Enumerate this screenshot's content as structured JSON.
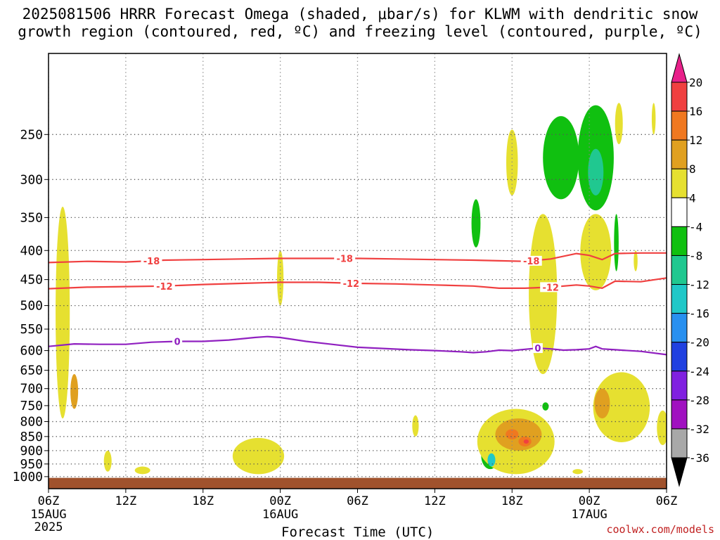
{
  "title": {
    "line1": "2025081506 HRRR Forecast Omega (shaded, μbar/s) for KLWM with dendritic snow",
    "line2": "growth region (contoured, red, ºC) and freezing level (contoured, purple, ºC)"
  },
  "credit": "coolwx.com/models",
  "chart_data": {
    "type": "heatmap",
    "title": "2025081506 HRRR Forecast Omega (shaded, μbar/s) for KLWM with dendritic snow growth region (contoured, red, ºC) and freezing level (contoured, purple, ºC)",
    "xlabel": "Forecast Time (UTC)",
    "ylabel": "",
    "x_ticks": [
      {
        "hour": 0,
        "label": "06Z",
        "sub": [
          "15AUG",
          "2025"
        ]
      },
      {
        "hour": 6,
        "label": "12Z",
        "sub": []
      },
      {
        "hour": 12,
        "label": "18Z",
        "sub": []
      },
      {
        "hour": 18,
        "label": "00Z",
        "sub": [
          "16AUG"
        ]
      },
      {
        "hour": 24,
        "label": "06Z",
        "sub": []
      },
      {
        "hour": 30,
        "label": "12Z",
        "sub": []
      },
      {
        "hour": 36,
        "label": "18Z",
        "sub": []
      },
      {
        "hour": 42,
        "label": "00Z",
        "sub": [
          "17AUG"
        ]
      },
      {
        "hour": 48,
        "label": "06Z",
        "sub": []
      }
    ],
    "xlim_hours": [
      0,
      48
    ],
    "y_axis": {
      "unit": "hPa",
      "scale": "pressure (log), inverted",
      "ylim": [
        1050,
        180
      ],
      "ticks": [
        250,
        300,
        350,
        400,
        450,
        500,
        550,
        600,
        650,
        700,
        750,
        800,
        850,
        900,
        950,
        1000
      ]
    },
    "grid": true,
    "colorbar": {
      "labels": [
        20,
        16,
        12,
        8,
        4,
        -4,
        -8,
        -12,
        -16,
        -20,
        -24,
        -28,
        -32,
        -36
      ],
      "bins": [
        {
          "from": 20,
          "to": null,
          "color": "#e8208a"
        },
        {
          "from": 16,
          "to": 20,
          "color": "#f04040"
        },
        {
          "from": 12,
          "to": 16,
          "color": "#f07820"
        },
        {
          "from": 8,
          "to": 12,
          "color": "#e0a020"
        },
        {
          "from": 4,
          "to": 8,
          "color": "#e6e030"
        },
        {
          "from": -4,
          "to": 4,
          "color": "#ffffff"
        },
        {
          "from": -8,
          "to": -4,
          "color": "#10c010"
        },
        {
          "from": -12,
          "to": -8,
          "color": "#20c890"
        },
        {
          "from": -16,
          "to": -12,
          "color": "#20c8c8"
        },
        {
          "from": -20,
          "to": -16,
          "color": "#2890f0"
        },
        {
          "from": -24,
          "to": -20,
          "color": "#2040e0"
        },
        {
          "from": -28,
          "to": -24,
          "color": "#8020e0"
        },
        {
          "from": -32,
          "to": -28,
          "color": "#a010c0"
        },
        {
          "from": -36,
          "to": -32,
          "color": "#a8a8a8"
        },
        {
          "from": null,
          "to": -36,
          "color": "#000000"
        }
      ]
    },
    "contours": [
      {
        "name": "-18",
        "color": "#f04040",
        "label": "-18",
        "label_hours": [
          8,
          23,
          37.5
        ],
        "points": [
          [
            0,
            420
          ],
          [
            3,
            418
          ],
          [
            6,
            419
          ],
          [
            9,
            416
          ],
          [
            12,
            415
          ],
          [
            15,
            414
          ],
          [
            18,
            413
          ],
          [
            21,
            413
          ],
          [
            24,
            413
          ],
          [
            27,
            414
          ],
          [
            30,
            415
          ],
          [
            33,
            416
          ],
          [
            35,
            417
          ],
          [
            37,
            418
          ],
          [
            39,
            414
          ],
          [
            41,
            405
          ],
          [
            42,
            408
          ],
          [
            43,
            415
          ],
          [
            44,
            405
          ],
          [
            46,
            404
          ],
          [
            48,
            404
          ]
        ]
      },
      {
        "name": "-12",
        "color": "#f04040",
        "label": "-12",
        "label_hours": [
          9,
          23.5,
          39
        ],
        "points": [
          [
            0,
            467
          ],
          [
            3,
            464
          ],
          [
            6,
            463
          ],
          [
            9,
            462
          ],
          [
            12,
            459
          ],
          [
            15,
            457
          ],
          [
            18,
            455
          ],
          [
            21,
            455
          ],
          [
            24,
            457
          ],
          [
            27,
            458
          ],
          [
            30,
            460
          ],
          [
            33,
            462
          ],
          [
            35,
            466
          ],
          [
            37,
            466
          ],
          [
            39,
            464
          ],
          [
            41,
            460
          ],
          [
            42,
            462
          ],
          [
            43,
            466
          ],
          [
            44,
            453
          ],
          [
            46,
            454
          ],
          [
            48,
            447
          ]
        ]
      },
      {
        "name": "0",
        "color": "#9020c0",
        "label": "0",
        "label_hours": [
          10,
          38
        ],
        "points": [
          [
            0,
            590
          ],
          [
            2,
            584
          ],
          [
            4,
            585
          ],
          [
            6,
            585
          ],
          [
            8,
            580
          ],
          [
            10,
            578
          ],
          [
            12,
            578
          ],
          [
            14,
            575
          ],
          [
            16,
            569
          ],
          [
            17,
            567
          ],
          [
            18,
            569
          ],
          [
            20,
            578
          ],
          [
            22,
            585
          ],
          [
            24,
            592
          ],
          [
            26,
            595
          ],
          [
            28,
            598
          ],
          [
            30,
            600
          ],
          [
            32,
            603
          ],
          [
            33,
            605
          ],
          [
            34,
            603
          ],
          [
            35,
            599
          ],
          [
            36,
            600
          ],
          [
            37,
            597
          ],
          [
            38,
            594
          ],
          [
            39,
            596
          ],
          [
            40,
            599
          ],
          [
            41,
            598
          ],
          [
            42,
            596
          ],
          [
            42.5,
            590
          ],
          [
            43,
            596
          ],
          [
            44,
            598
          ],
          [
            46,
            602
          ],
          [
            48,
            610
          ]
        ]
      }
    ],
    "omega_regions": [
      {
        "value": 6,
        "hour": 1.1,
        "p_top": 335,
        "p_bottom": 790,
        "hwidth": 0.55
      },
      {
        "value": 10,
        "hour": 2.0,
        "p_top": 660,
        "p_bottom": 760,
        "hwidth": 0.3
      },
      {
        "value": 6,
        "hour": 4.6,
        "p_top": 900,
        "p_bottom": 980,
        "hwidth": 0.3
      },
      {
        "value": 6,
        "hour": 7.3,
        "p_top": 960,
        "p_bottom": 990,
        "hwidth": 0.6
      },
      {
        "value": 6,
        "hour": 16.3,
        "p_top": 855,
        "p_bottom": 990,
        "hwidth": 2.0
      },
      {
        "value": 6,
        "hour": 18.0,
        "p_top": 400,
        "p_bottom": 500,
        "hwidth": 0.25
      },
      {
        "value": 6,
        "hour": 28.5,
        "p_top": 780,
        "p_bottom": 850,
        "hwidth": 0.25
      },
      {
        "value": -6,
        "hour": 33.2,
        "p_top": 325,
        "p_bottom": 395,
        "hwidth": 0.35
      },
      {
        "value": -6,
        "hour": 34.3,
        "p_top": 870,
        "p_bottom": 970,
        "hwidth": 0.7
      },
      {
        "value": -14,
        "hour": 34.4,
        "p_top": 910,
        "p_bottom": 960,
        "hwidth": 0.3
      },
      {
        "value": 6,
        "hour": 36.3,
        "p_top": 760,
        "p_bottom": 990,
        "hwidth": 3.0
      },
      {
        "value": 10,
        "hour": 36.5,
        "p_top": 790,
        "p_bottom": 900,
        "hwidth": 1.8
      },
      {
        "value": 14,
        "hour": 36.0,
        "p_top": 825,
        "p_bottom": 860,
        "hwidth": 0.5
      },
      {
        "value": 14,
        "hour": 37.0,
        "p_top": 850,
        "p_bottom": 885,
        "hwidth": 0.5
      },
      {
        "value": 18,
        "hour": 37.1,
        "p_top": 860,
        "p_bottom": 875,
        "hwidth": 0.2
      },
      {
        "value": 6,
        "hour": 36.0,
        "p_top": 245,
        "p_bottom": 320,
        "hwidth": 0.45
      },
      {
        "value": 6,
        "hour": 38.4,
        "p_top": 345,
        "p_bottom": 660,
        "hwidth": 1.1
      },
      {
        "value": -6,
        "hour": 38.6,
        "p_top": 740,
        "p_bottom": 765,
        "hwidth": 0.25
      },
      {
        "value": -6,
        "hour": 39.8,
        "p_top": 232,
        "p_bottom": 325,
        "hwidth": 1.4
      },
      {
        "value": 6,
        "hour": 42.5,
        "p_top": 345,
        "p_bottom": 470,
        "hwidth": 1.2
      },
      {
        "value": -6,
        "hour": 42.5,
        "p_top": 222,
        "p_bottom": 340,
        "hwidth": 1.4
      },
      {
        "value": -10,
        "hour": 42.5,
        "p_top": 265,
        "p_bottom": 320,
        "hwidth": 0.6
      },
      {
        "value": 6,
        "hour": 44.3,
        "p_top": 220,
        "p_bottom": 260,
        "hwidth": 0.3
      },
      {
        "value": -6,
        "hour": 44.1,
        "p_top": 345,
        "p_bottom": 435,
        "hwidth": 0.18
      },
      {
        "value": 6,
        "hour": 44.5,
        "p_top": 655,
        "p_bottom": 870,
        "hwidth": 2.2
      },
      {
        "value": 10,
        "hour": 43.0,
        "p_top": 700,
        "p_bottom": 790,
        "hwidth": 0.6
      },
      {
        "value": 6,
        "hour": 45.6,
        "p_top": 400,
        "p_bottom": 435,
        "hwidth": 0.15
      },
      {
        "value": 6,
        "hour": 47.7,
        "p_top": 765,
        "p_bottom": 880,
        "hwidth": 0.45
      },
      {
        "value": 6,
        "hour": 47.0,
        "p_top": 220,
        "p_bottom": 250,
        "hwidth": 0.15
      },
      {
        "value": 6,
        "hour": 41.1,
        "p_top": 970,
        "p_bottom": 990,
        "hwidth": 0.4
      }
    ],
    "surface": {
      "color": "#a0522d",
      "p_top": 1005
    }
  }
}
